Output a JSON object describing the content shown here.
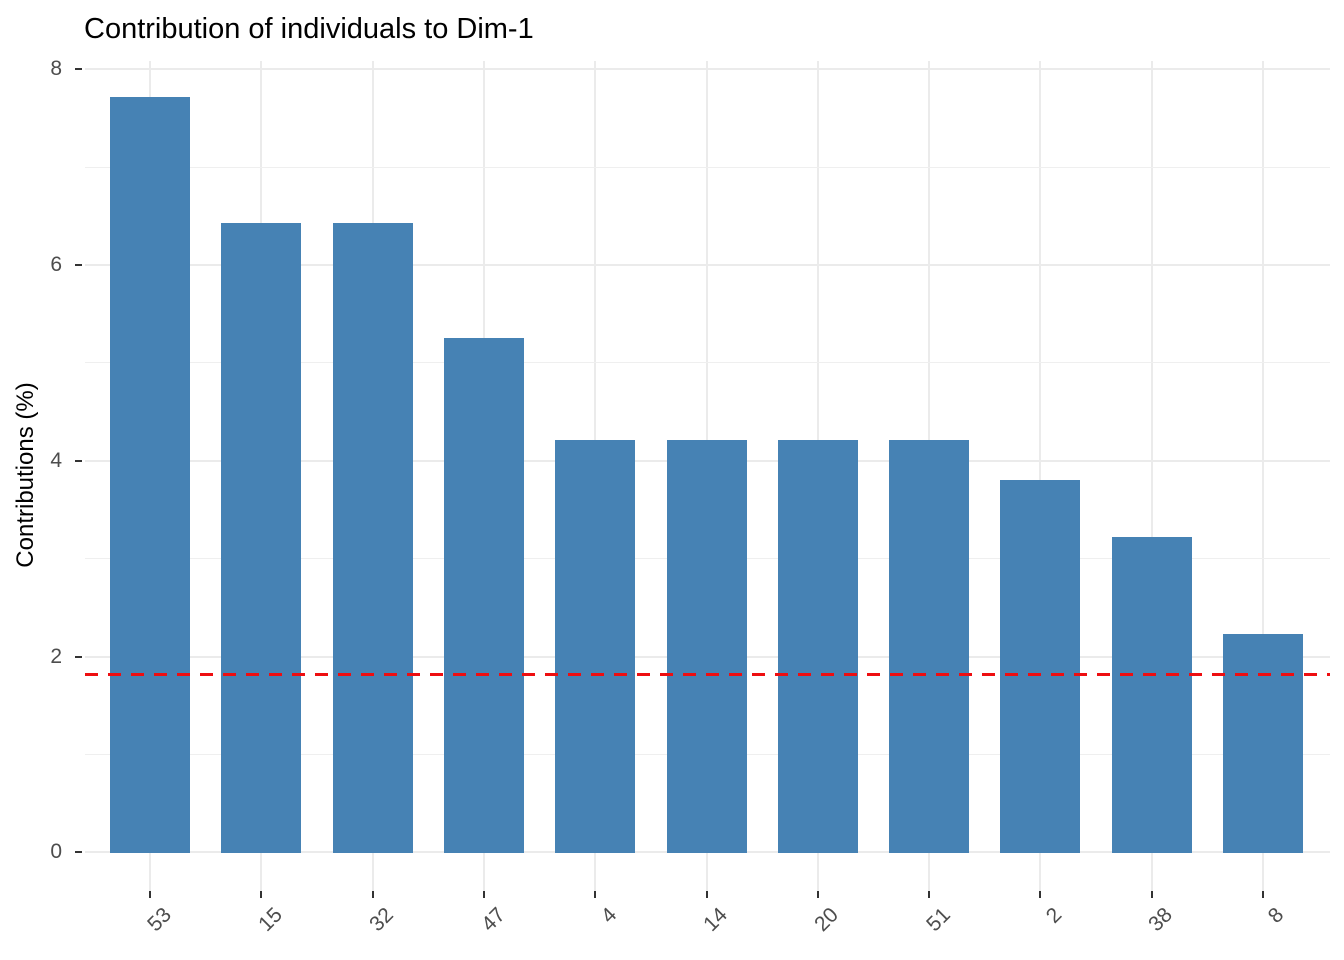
{
  "title": "Contribution of individuals to Dim-1",
  "ylabel": "Contributions (%)",
  "colors": {
    "bar_fill": "#4682B4",
    "reference_line": "#EE0E11",
    "grid_major": "#EBEBEB",
    "grid_minor": "#EFEFEF",
    "axis_text": "#4D4D4D",
    "tick_mark": "#333333",
    "title_text": "#000000",
    "background": "#FFFFFF"
  },
  "chart_data": {
    "type": "bar",
    "title": "Contribution of individuals to Dim-1",
    "xlabel": "",
    "ylabel": "Contributions (%)",
    "categories": [
      "53",
      "15",
      "32",
      "47",
      "4",
      "14",
      "20",
      "51",
      "2",
      "38",
      "8"
    ],
    "values": [
      7.71,
      6.43,
      6.43,
      5.25,
      4.21,
      4.21,
      4.21,
      4.21,
      3.8,
      3.22,
      2.23
    ],
    "reference_line": 1.82,
    "reference_line_style": "dashed",
    "y_ticks_major": [
      0,
      2,
      4,
      6,
      8
    ],
    "y_ticks_minor": [
      1,
      3,
      5,
      7
    ],
    "ylim": [
      0,
      8.1
    ],
    "grid": true,
    "legend_position": "none",
    "bar_orientation": "vertical",
    "x_tick_label_rotation_deg": 45
  }
}
